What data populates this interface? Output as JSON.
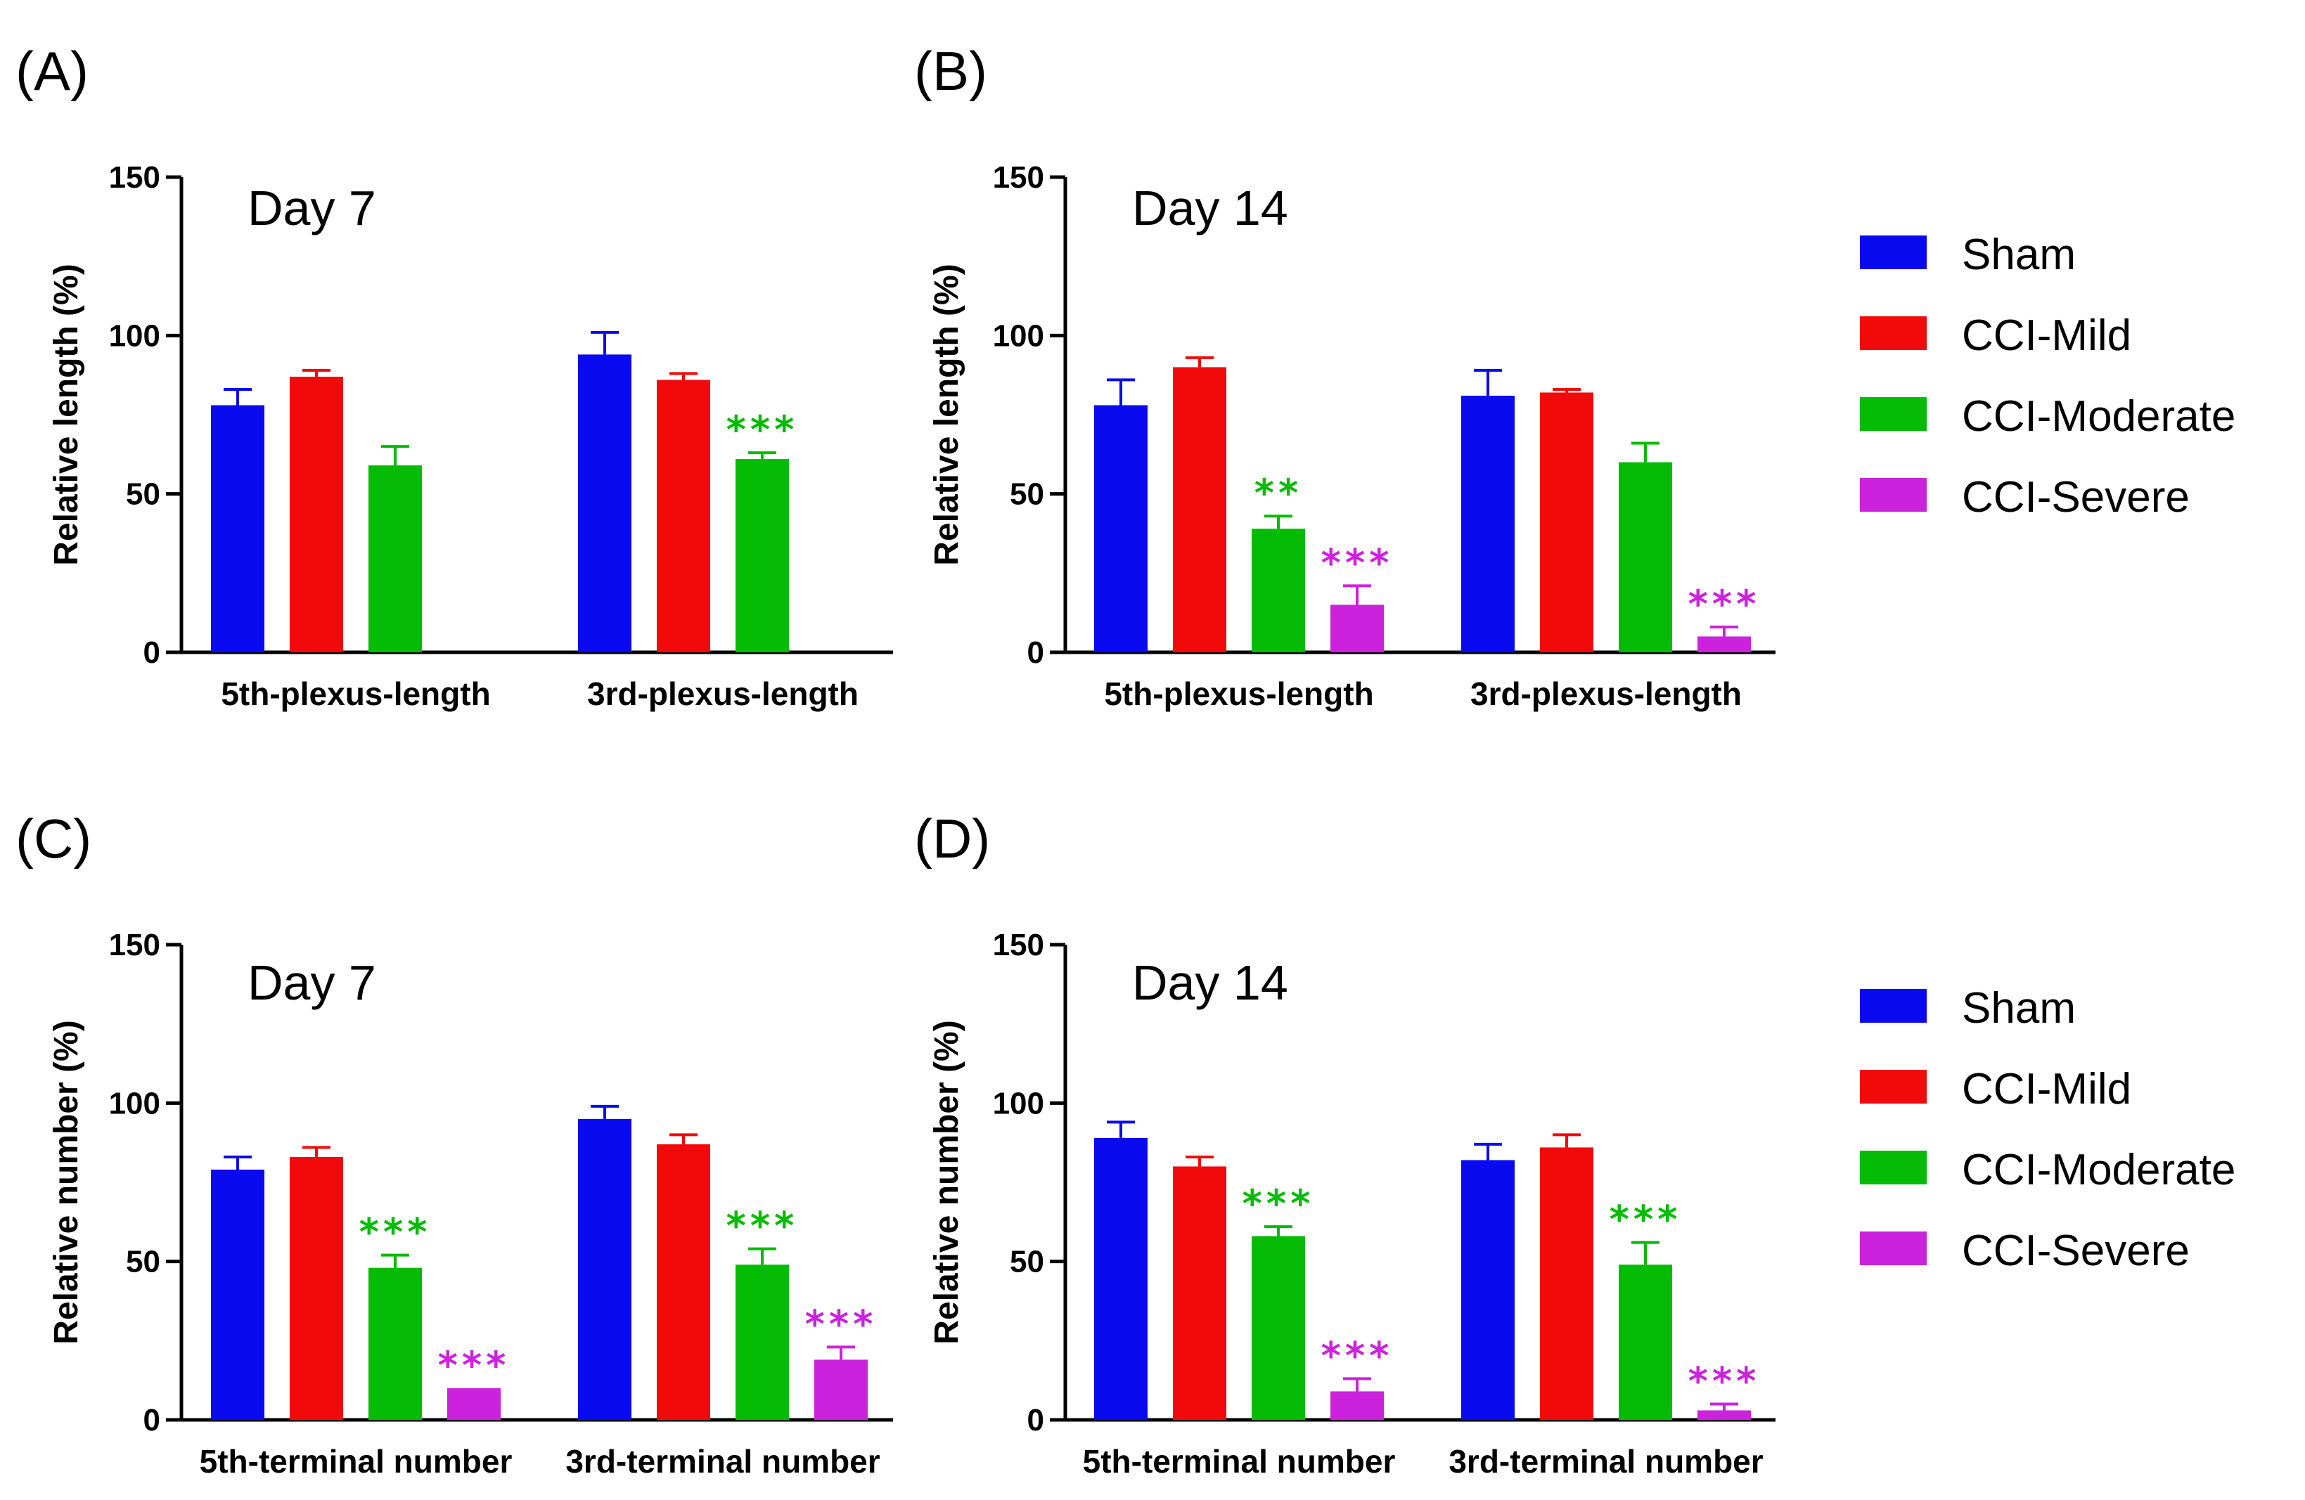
{
  "colors": {
    "Sham": "#0a0af0",
    "CCI-Mild": "#f20a0a",
    "CCI-Moderate": "#05bb05",
    "CCI-Severe": "#cc22dd"
  },
  "legend": {
    "entries": [
      "Sham",
      "CCI-Mild",
      "CCI-Moderate",
      "CCI-Severe"
    ]
  },
  "chart_data": [
    {
      "panel": "(A)",
      "type": "bar",
      "title": "Day 7",
      "ylabel": "Relative length (%)",
      "ylim": [
        0,
        150
      ],
      "yticks": [
        0,
        50,
        100,
        150
      ],
      "categories": [
        "5th-plexus-length",
        "3rd-plexus-length"
      ],
      "series": [
        {
          "name": "Sham",
          "values": [
            78,
            94
          ],
          "errors": [
            5,
            7
          ]
        },
        {
          "name": "CCI-Mild",
          "values": [
            87,
            86
          ],
          "errors": [
            2,
            2
          ]
        },
        {
          "name": "CCI-Moderate",
          "values": [
            59,
            61
          ],
          "errors": [
            6,
            2
          ]
        },
        {
          "name": "CCI-Severe",
          "values": [
            null,
            null
          ],
          "errors": [
            0,
            0
          ]
        }
      ],
      "annotations": [
        {
          "category": 1,
          "series": "CCI-Moderate",
          "text": "***"
        }
      ]
    },
    {
      "panel": "(B)",
      "type": "bar",
      "title": "Day 14",
      "ylabel": "Relative length (%)",
      "ylim": [
        0,
        150
      ],
      "yticks": [
        0,
        50,
        100,
        150
      ],
      "categories": [
        "5th-plexus-length",
        "3rd-plexus-length"
      ],
      "series": [
        {
          "name": "Sham",
          "values": [
            78,
            81
          ],
          "errors": [
            8,
            8
          ]
        },
        {
          "name": "CCI-Mild",
          "values": [
            90,
            82
          ],
          "errors": [
            3,
            1
          ]
        },
        {
          "name": "CCI-Moderate",
          "values": [
            39,
            60
          ],
          "errors": [
            4,
            6
          ]
        },
        {
          "name": "CCI-Severe",
          "values": [
            15,
            5
          ],
          "errors": [
            6,
            3
          ]
        }
      ],
      "annotations": [
        {
          "category": 0,
          "series": "CCI-Moderate",
          "text": "**"
        },
        {
          "category": 0,
          "series": "CCI-Severe",
          "text": "***"
        },
        {
          "category": 1,
          "series": "CCI-Severe",
          "text": "***"
        }
      ]
    },
    {
      "panel": "(C)",
      "type": "bar",
      "title": "Day 7",
      "ylabel": "Relative number (%)",
      "ylim": [
        0,
        150
      ],
      "yticks": [
        0,
        50,
        100,
        150
      ],
      "categories": [
        "5th-terminal number",
        "3rd-terminal number"
      ],
      "series": [
        {
          "name": "Sham",
          "values": [
            79,
            95
          ],
          "errors": [
            4,
            4
          ]
        },
        {
          "name": "CCI-Mild",
          "values": [
            83,
            87
          ],
          "errors": [
            3,
            3
          ]
        },
        {
          "name": "CCI-Moderate",
          "values": [
            48,
            49
          ],
          "errors": [
            4,
            5
          ]
        },
        {
          "name": "CCI-Severe",
          "values": [
            10,
            19
          ],
          "errors": [
            0,
            4
          ]
        }
      ],
      "annotations": [
        {
          "category": 0,
          "series": "CCI-Moderate",
          "text": "***"
        },
        {
          "category": 0,
          "series": "CCI-Severe",
          "text": "***"
        },
        {
          "category": 1,
          "series": "CCI-Moderate",
          "text": "***"
        },
        {
          "category": 1,
          "series": "CCI-Severe",
          "text": "***"
        }
      ]
    },
    {
      "panel": "(D)",
      "type": "bar",
      "title": "Day 14",
      "ylabel": "Relative number (%)",
      "ylim": [
        0,
        150
      ],
      "yticks": [
        0,
        50,
        100,
        150
      ],
      "categories": [
        "5th-terminal number",
        "3rd-terminal number"
      ],
      "series": [
        {
          "name": "Sham",
          "values": [
            89,
            82
          ],
          "errors": [
            5,
            5
          ]
        },
        {
          "name": "CCI-Mild",
          "values": [
            80,
            86
          ],
          "errors": [
            3,
            4
          ]
        },
        {
          "name": "CCI-Moderate",
          "values": [
            58,
            49
          ],
          "errors": [
            3,
            7
          ]
        },
        {
          "name": "CCI-Severe",
          "values": [
            9,
            3
          ],
          "errors": [
            4,
            2
          ]
        }
      ],
      "annotations": [
        {
          "category": 0,
          "series": "CCI-Moderate",
          "text": "***"
        },
        {
          "category": 0,
          "series": "CCI-Severe",
          "text": "***"
        },
        {
          "category": 1,
          "series": "CCI-Moderate",
          "text": "***"
        },
        {
          "category": 1,
          "series": "CCI-Severe",
          "text": "***"
        }
      ]
    }
  ]
}
